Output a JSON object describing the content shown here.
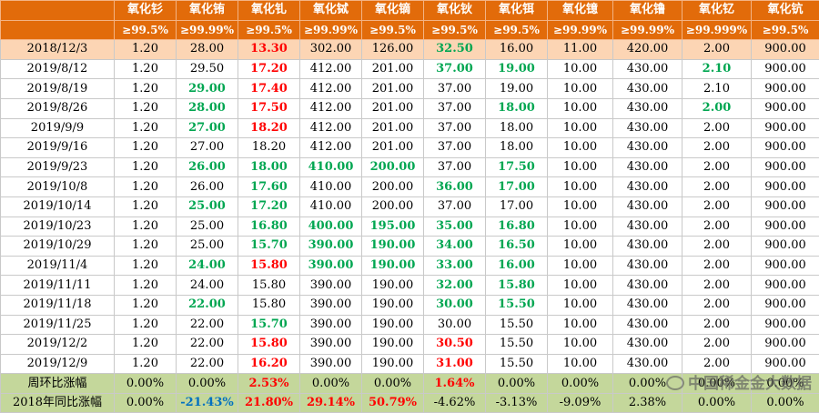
{
  "header": {
    "names": [
      "",
      "氧化钐",
      "氧化铕",
      "氧化钆",
      "氧化铽",
      "氧化镝",
      "氧化钬",
      "氧化铒",
      "氧化镱",
      "氧化镥",
      "氧化钇",
      "氧化钪"
    ],
    "purities": [
      "",
      "≥99.5%",
      "≥99.99%",
      "≥99.5%",
      "≥99.99%",
      "≥99.5%",
      "≥99.5%",
      "≥99.5%",
      "≥99.99%",
      "≥99.99%",
      "≥99.999%",
      "≥99.5%"
    ]
  },
  "rows": [
    {
      "date": "2018/12/3",
      "values": [
        "1.20",
        "28.00",
        "13.30",
        "302.00",
        "126.00",
        "32.50",
        "16.00",
        "11.00",
        "420.00",
        "2.00",
        "900.00"
      ],
      "colors": [
        "",
        "",
        "r",
        "",
        "",
        "g",
        "",
        "",
        "",
        "",
        ""
      ]
    },
    {
      "date": "2019/8/12",
      "values": [
        "1.20",
        "29.50",
        "17.20",
        "412.00",
        "201.00",
        "37.00",
        "19.00",
        "10.00",
        "430.00",
        "2.10",
        "900.00"
      ],
      "colors": [
        "",
        "",
        "r",
        "",
        "",
        "g",
        "g",
        "",
        "",
        "g",
        ""
      ]
    },
    {
      "date": "2019/8/19",
      "values": [
        "1.20",
        "29.00",
        "17.40",
        "412.00",
        "201.00",
        "37.00",
        "19.00",
        "10.00",
        "430.00",
        "2.10",
        "900.00"
      ],
      "colors": [
        "",
        "g",
        "r",
        "",
        "",
        "",
        "",
        "",
        "",
        "",
        ""
      ]
    },
    {
      "date": "2019/8/26",
      "values": [
        "1.20",
        "28.00",
        "17.50",
        "412.00",
        "201.00",
        "37.00",
        "18.00",
        "10.00",
        "430.00",
        "2.00",
        "900.00"
      ],
      "colors": [
        "",
        "g",
        "r",
        "",
        "",
        "",
        "g",
        "",
        "",
        "g",
        ""
      ]
    },
    {
      "date": "2019/9/9",
      "values": [
        "1.20",
        "27.00",
        "18.20",
        "412.00",
        "201.00",
        "37.00",
        "18.00",
        "10.00",
        "430.00",
        "2.00",
        "900.00"
      ],
      "colors": [
        "",
        "g",
        "r",
        "",
        "",
        "",
        "",
        "",
        "",
        "",
        ""
      ]
    },
    {
      "date": "2019/9/16",
      "values": [
        "1.20",
        "27.00",
        "18.20",
        "412.00",
        "201.00",
        "37.00",
        "18.00",
        "10.00",
        "430.00",
        "2.00",
        "900.00"
      ],
      "colors": [
        "",
        "",
        "",
        "",
        "",
        "",
        "",
        "",
        "",
        "",
        ""
      ]
    },
    {
      "date": "2019/9/23",
      "values": [
        "1.20",
        "26.00",
        "18.00",
        "410.00",
        "200.00",
        "37.00",
        "17.50",
        "10.00",
        "430.00",
        "2.00",
        "900.00"
      ],
      "colors": [
        "",
        "g",
        "g",
        "g",
        "g",
        "",
        "g",
        "",
        "",
        "",
        ""
      ]
    },
    {
      "date": "2019/10/8",
      "values": [
        "1.20",
        "26.00",
        "17.60",
        "410.00",
        "200.00",
        "36.00",
        "17.00",
        "10.00",
        "430.00",
        "2.00",
        "900.00"
      ],
      "colors": [
        "",
        "",
        "g",
        "",
        "",
        "g",
        "g",
        "",
        "",
        "",
        ""
      ]
    },
    {
      "date": "2019/10/14",
      "values": [
        "1.20",
        "25.00",
        "17.20",
        "410.00",
        "200.00",
        "37.00",
        "17.00",
        "10.00",
        "430.00",
        "2.00",
        "900.00"
      ],
      "colors": [
        "",
        "g",
        "g",
        "",
        "",
        "",
        "",
        "",
        "",
        "",
        ""
      ]
    },
    {
      "date": "2019/10/23",
      "values": [
        "1.20",
        "25.00",
        "16.80",
        "400.00",
        "195.00",
        "35.00",
        "16.80",
        "10.00",
        "430.00",
        "2.00",
        "900.00"
      ],
      "colors": [
        "",
        "",
        "g",
        "g",
        "g",
        "g",
        "g",
        "",
        "",
        "",
        ""
      ]
    },
    {
      "date": "2019/10/29",
      "values": [
        "1.20",
        "25.00",
        "15.70",
        "390.00",
        "190.00",
        "34.00",
        "16.50",
        "10.00",
        "430.00",
        "2.00",
        "900.00"
      ],
      "colors": [
        "",
        "",
        "g",
        "g",
        "g",
        "g",
        "g",
        "",
        "",
        "",
        ""
      ]
    },
    {
      "date": "2019/11/4",
      "values": [
        "1.20",
        "24.00",
        "15.80",
        "390.00",
        "190.00",
        "33.00",
        "16.00",
        "10.00",
        "430.00",
        "2.00",
        "900.00"
      ],
      "colors": [
        "",
        "g",
        "r",
        "g",
        "g",
        "g",
        "g",
        "",
        "",
        "",
        ""
      ]
    },
    {
      "date": "2019/11/11",
      "values": [
        "1.20",
        "24.00",
        "15.80",
        "390.00",
        "190.00",
        "32.00",
        "15.80",
        "10.00",
        "430.00",
        "2.00",
        "900.00"
      ],
      "colors": [
        "",
        "",
        "",
        "",
        "",
        "g",
        "g",
        "",
        "",
        "",
        ""
      ]
    },
    {
      "date": "2019/11/18",
      "values": [
        "1.20",
        "22.00",
        "15.80",
        "390.00",
        "190.00",
        "30.00",
        "15.50",
        "10.00",
        "430.00",
        "2.00",
        "900.00"
      ],
      "colors": [
        "",
        "g",
        "",
        "",
        "",
        "g",
        "g",
        "",
        "",
        "",
        ""
      ]
    },
    {
      "date": "2019/11/25",
      "values": [
        "1.20",
        "22.00",
        "15.70",
        "390.00",
        "190.00",
        "30.00",
        "15.50",
        "10.00",
        "430.00",
        "2.00",
        "900.00"
      ],
      "colors": [
        "",
        "",
        "g",
        "",
        "",
        "",
        "",
        "",
        "",
        "",
        ""
      ]
    },
    {
      "date": "2019/12/2",
      "values": [
        "1.20",
        "22.00",
        "15.80",
        "390.00",
        "190.00",
        "30.50",
        "15.50",
        "10.00",
        "430.00",
        "2.00",
        "900.00"
      ],
      "colors": [
        "",
        "",
        "r",
        "",
        "",
        "r",
        "",
        "",
        "",
        "",
        ""
      ]
    },
    {
      "date": "2019/12/9",
      "values": [
        "1.20",
        "22.00",
        "16.20",
        "390.00",
        "190.00",
        "31.00",
        "15.50",
        "10.00",
        "430.00",
        "2.00",
        "900.00"
      ],
      "colors": [
        "",
        "",
        "r",
        "",
        "",
        "r",
        "",
        "",
        "",
        "",
        ""
      ]
    }
  ],
  "summary": [
    {
      "label": "周环比涨幅",
      "values": [
        "0.00%",
        "0.00%",
        "2.53%",
        "0.00%",
        "0.00%",
        "1.64%",
        "0.00%",
        "0.00%",
        "0.00%",
        "0.00%",
        "0.00%"
      ],
      "colors": [
        "",
        "",
        "r",
        "",
        "",
        "r",
        "",
        "",
        "",
        "",
        ""
      ]
    },
    {
      "label": "2018年同比涨幅",
      "values": [
        "0.00%",
        "-21.43%",
        "21.80%",
        "29.14%",
        "50.79%",
        "-4.62%",
        "-3.13%",
        "-9.09%",
        "2.38%",
        "0.00%",
        "0.00%"
      ],
      "colors": [
        "",
        "b",
        "r",
        "r",
        "r",
        "",
        "",
        "",
        "",
        "",
        ""
      ]
    }
  ],
  "watermark": "中国稀金金大数据"
}
